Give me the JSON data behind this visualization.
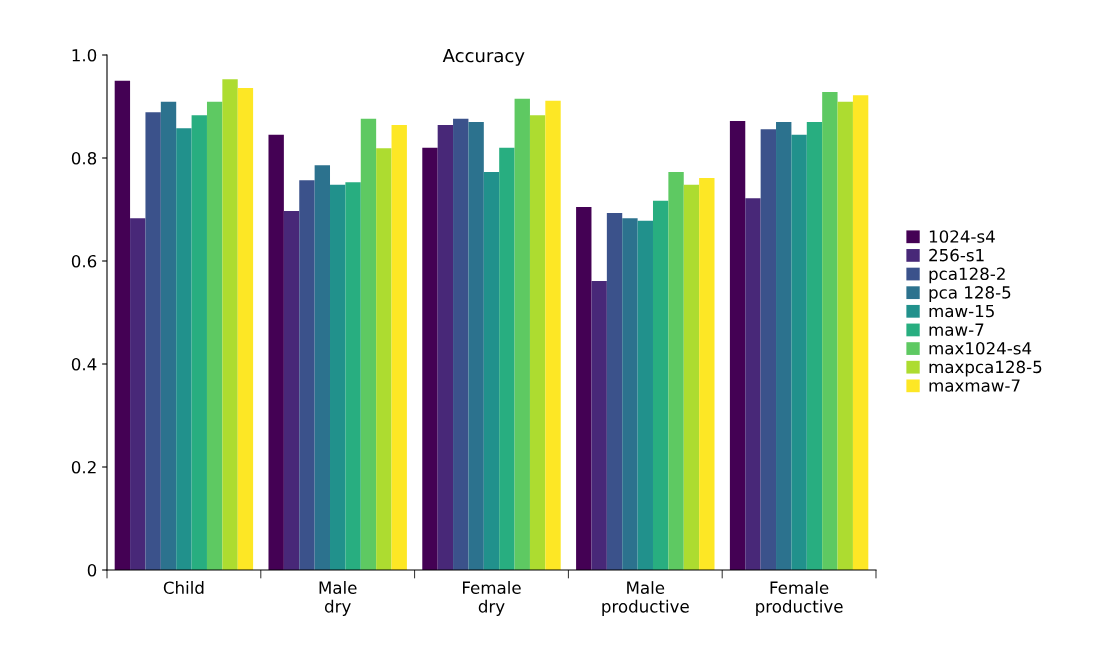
{
  "chart_data": {
    "type": "bar",
    "title": "Accuracy",
    "categories": [
      "Child",
      "Male\ndry",
      "Female\ndry",
      "Male\nproductive",
      "Female\nproductive"
    ],
    "series": [
      {
        "name": "1024-s4",
        "color": "#440154",
        "values": [
          0.95,
          0.845,
          0.82,
          0.705,
          0.872
        ]
      },
      {
        "name": "256-s1",
        "color": "#482878",
        "values": [
          0.683,
          0.697,
          0.864,
          0.561,
          0.722
        ]
      },
      {
        "name": "pca128-2",
        "color": "#3b528b",
        "values": [
          0.889,
          0.757,
          0.876,
          0.693,
          0.856
        ]
      },
      {
        "name": "pca 128-5",
        "color": "#2c728e",
        "values": [
          0.909,
          0.786,
          0.87,
          0.683,
          0.87
        ]
      },
      {
        "name": "maw-15",
        "color": "#21918c",
        "values": [
          0.858,
          0.748,
          0.773,
          0.678,
          0.845
        ]
      },
      {
        "name": "maw-7",
        "color": "#28ae80",
        "values": [
          0.883,
          0.753,
          0.82,
          0.717,
          0.87
        ]
      },
      {
        "name": "max1024-s4",
        "color": "#5ec962",
        "values": [
          0.909,
          0.876,
          0.915,
          0.773,
          0.928
        ]
      },
      {
        "name": "maxpca128-5",
        "color": "#addc30",
        "values": [
          0.953,
          0.819,
          0.883,
          0.748,
          0.909
        ]
      },
      {
        "name": "maxmaw-7",
        "color": "#fde725",
        "values": [
          0.936,
          0.864,
          0.911,
          0.761,
          0.922
        ]
      }
    ],
    "ylim": [
      0,
      1.0
    ],
    "yticks": [
      0,
      {
        "value": 0.2,
        "label": "0.2"
      },
      {
        "value": 0.4,
        "label": "0.4"
      },
      {
        "value": 0.6,
        "label": "0.6"
      },
      {
        "value": 0.8,
        "label": "0.8"
      },
      {
        "value": 1.0,
        "label": "1.0"
      }
    ],
    "grid": false,
    "legend": "right"
  }
}
